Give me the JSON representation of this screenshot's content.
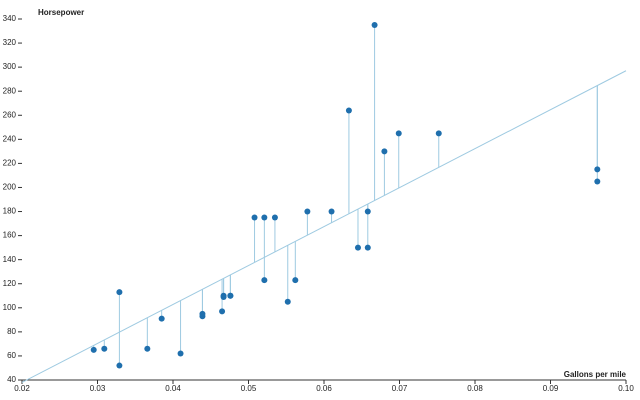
{
  "chart_data": {
    "type": "scatter",
    "x_label": "Gallons per mile",
    "y_label": "Horsepower",
    "x": [
      0.0476,
      0.0476,
      0.0439,
      0.0467,
      0.0535,
      0.0552,
      0.0699,
      0.041,
      0.0439,
      0.0521,
      0.0562,
      0.061,
      0.0578,
      0.0658,
      0.0962,
      0.0962,
      0.068,
      0.0309,
      0.0329,
      0.0295,
      0.0465,
      0.0645,
      0.0658,
      0.0752,
      0.0521,
      0.0366,
      0.0385,
      0.0329,
      0.0633,
      0.0508,
      0.0667,
      0.0467
    ],
    "values": [
      110,
      110,
      93,
      110,
      175,
      105,
      245,
      62,
      95,
      123,
      123,
      180,
      180,
      180,
      205,
      215,
      230,
      66,
      52,
      65,
      97,
      150,
      150,
      245,
      175,
      66,
      91,
      113,
      264,
      175,
      335,
      109
    ],
    "color": "#1f6fad",
    "fit_line": {
      "x": [
        0.02,
        0.1
      ],
      "y": [
        38,
        297
      ],
      "color": "#9ecae1"
    },
    "xlim": [
      0.02,
      0.1
    ],
    "ylim": [
      40,
      340
    ],
    "xticks": [
      0.02,
      0.03,
      0.04,
      0.05,
      0.06,
      0.07,
      0.08,
      0.09,
      {
        "value": 0.1,
        "label": "0.10"
      }
    ],
    "yticks": [
      40,
      60,
      80,
      100,
      120,
      140,
      160,
      180,
      200,
      220,
      240,
      260,
      280,
      300,
      320,
      340
    ]
  }
}
